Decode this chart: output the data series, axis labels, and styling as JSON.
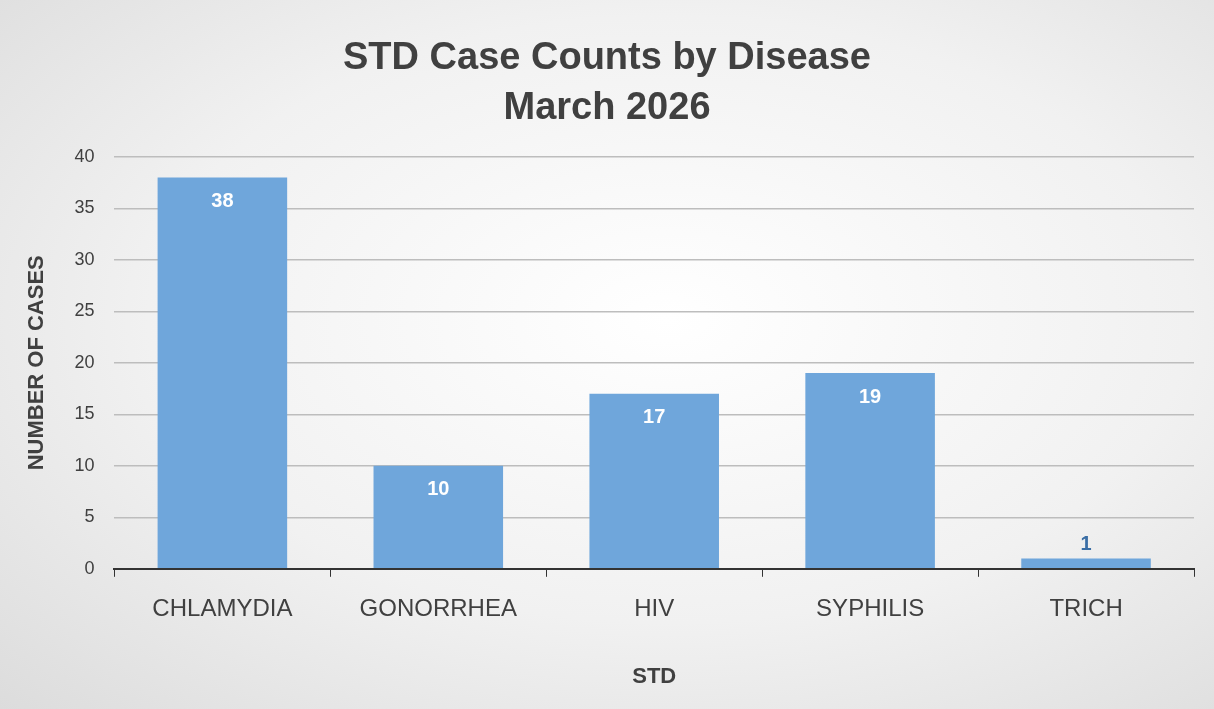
{
  "chart_data": {
    "type": "bar",
    "title": "STD Case Counts by Disease",
    "subtitle": "March 2026",
    "xlabel": "STD",
    "ylabel": "NUMBER OF CASES",
    "categories": [
      "CHLAMYDIA",
      "GONORRHEA",
      "HIV",
      "SYPHILIS",
      "TRICH"
    ],
    "values": [
      38,
      10,
      17,
      19,
      1
    ],
    "color": "#6fa6db",
    "ylim": [
      0,
      40
    ],
    "yticks": [
      0,
      5,
      10,
      15,
      20,
      25,
      30,
      35,
      40
    ],
    "grid": "y",
    "data_labels": true,
    "legend": false
  }
}
